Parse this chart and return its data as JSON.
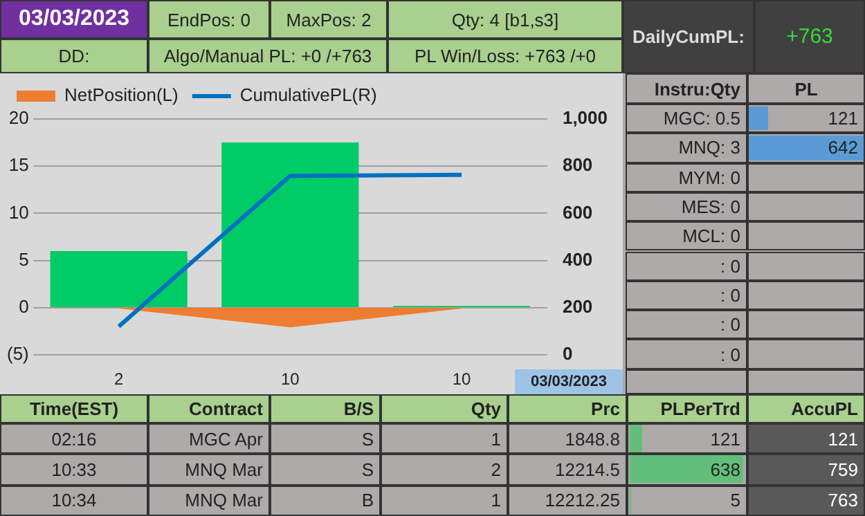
{
  "chart_data": {
    "type": "bar",
    "categories": [
      "2",
      "10",
      "10"
    ],
    "series": [
      {
        "color": "#00cc66",
        "values": [
          6,
          17.5,
          0.2
        ]
      },
      {
        "type": "area",
        "name": "NetPosition(L)",
        "color": "#ed7d31",
        "values": [
          0,
          -2,
          0
        ]
      },
      {
        "type": "line",
        "name": "CumulativePL(R)",
        "color": "#0070c0",
        "axis": "y2",
        "values": [
          121,
          759,
          763
        ]
      }
    ],
    "ylim": [
      -5,
      20
    ],
    "yticks": [
      {
        "value": -5,
        "label": "(5)"
      },
      0,
      5,
      10,
      15,
      20
    ],
    "y2lim": [
      0,
      1000
    ],
    "y2ticks": [
      0,
      200,
      400,
      600,
      800,
      {
        "value": 1000,
        "label": "1,000"
      }
    ],
    "grid": "y",
    "legend": "top left",
    "marker": "none",
    "annotations": [
      "03/03/2023",
      "EndPos: 0",
      "MaxPos: 2",
      "Qty: 4 [b1,s3]",
      "DD:",
      "Algo/Manual PL: +0 /+763",
      "PL Win/Loss: +763 /+0",
      "DailyCumPL:",
      "+763",
      "Instru:Qty",
      "PL",
      "MGC: 0.5",
      "121",
      "MNQ: 3",
      "642",
      "MYM: 0",
      "MES: 0",
      "MCL: 0",
      ": 0",
      ": 0",
      ": 0",
      ": 0",
      "Time(EST)",
      "Contract",
      "B/S",
      "Qty",
      "Prc",
      "PLPerTrd",
      "AccuPL",
      "02:16",
      "MGC Apr",
      "S",
      "1",
      "1848.8",
      "121",
      "121",
      "10:33",
      "MNQ Mar",
      "S",
      "2",
      "12214.5",
      "638",
      "759",
      "10:34",
      "MNQ Mar",
      "B",
      "1",
      "12212.25",
      "5",
      "763",
      "03/03/2023"
    ]
  }
}
